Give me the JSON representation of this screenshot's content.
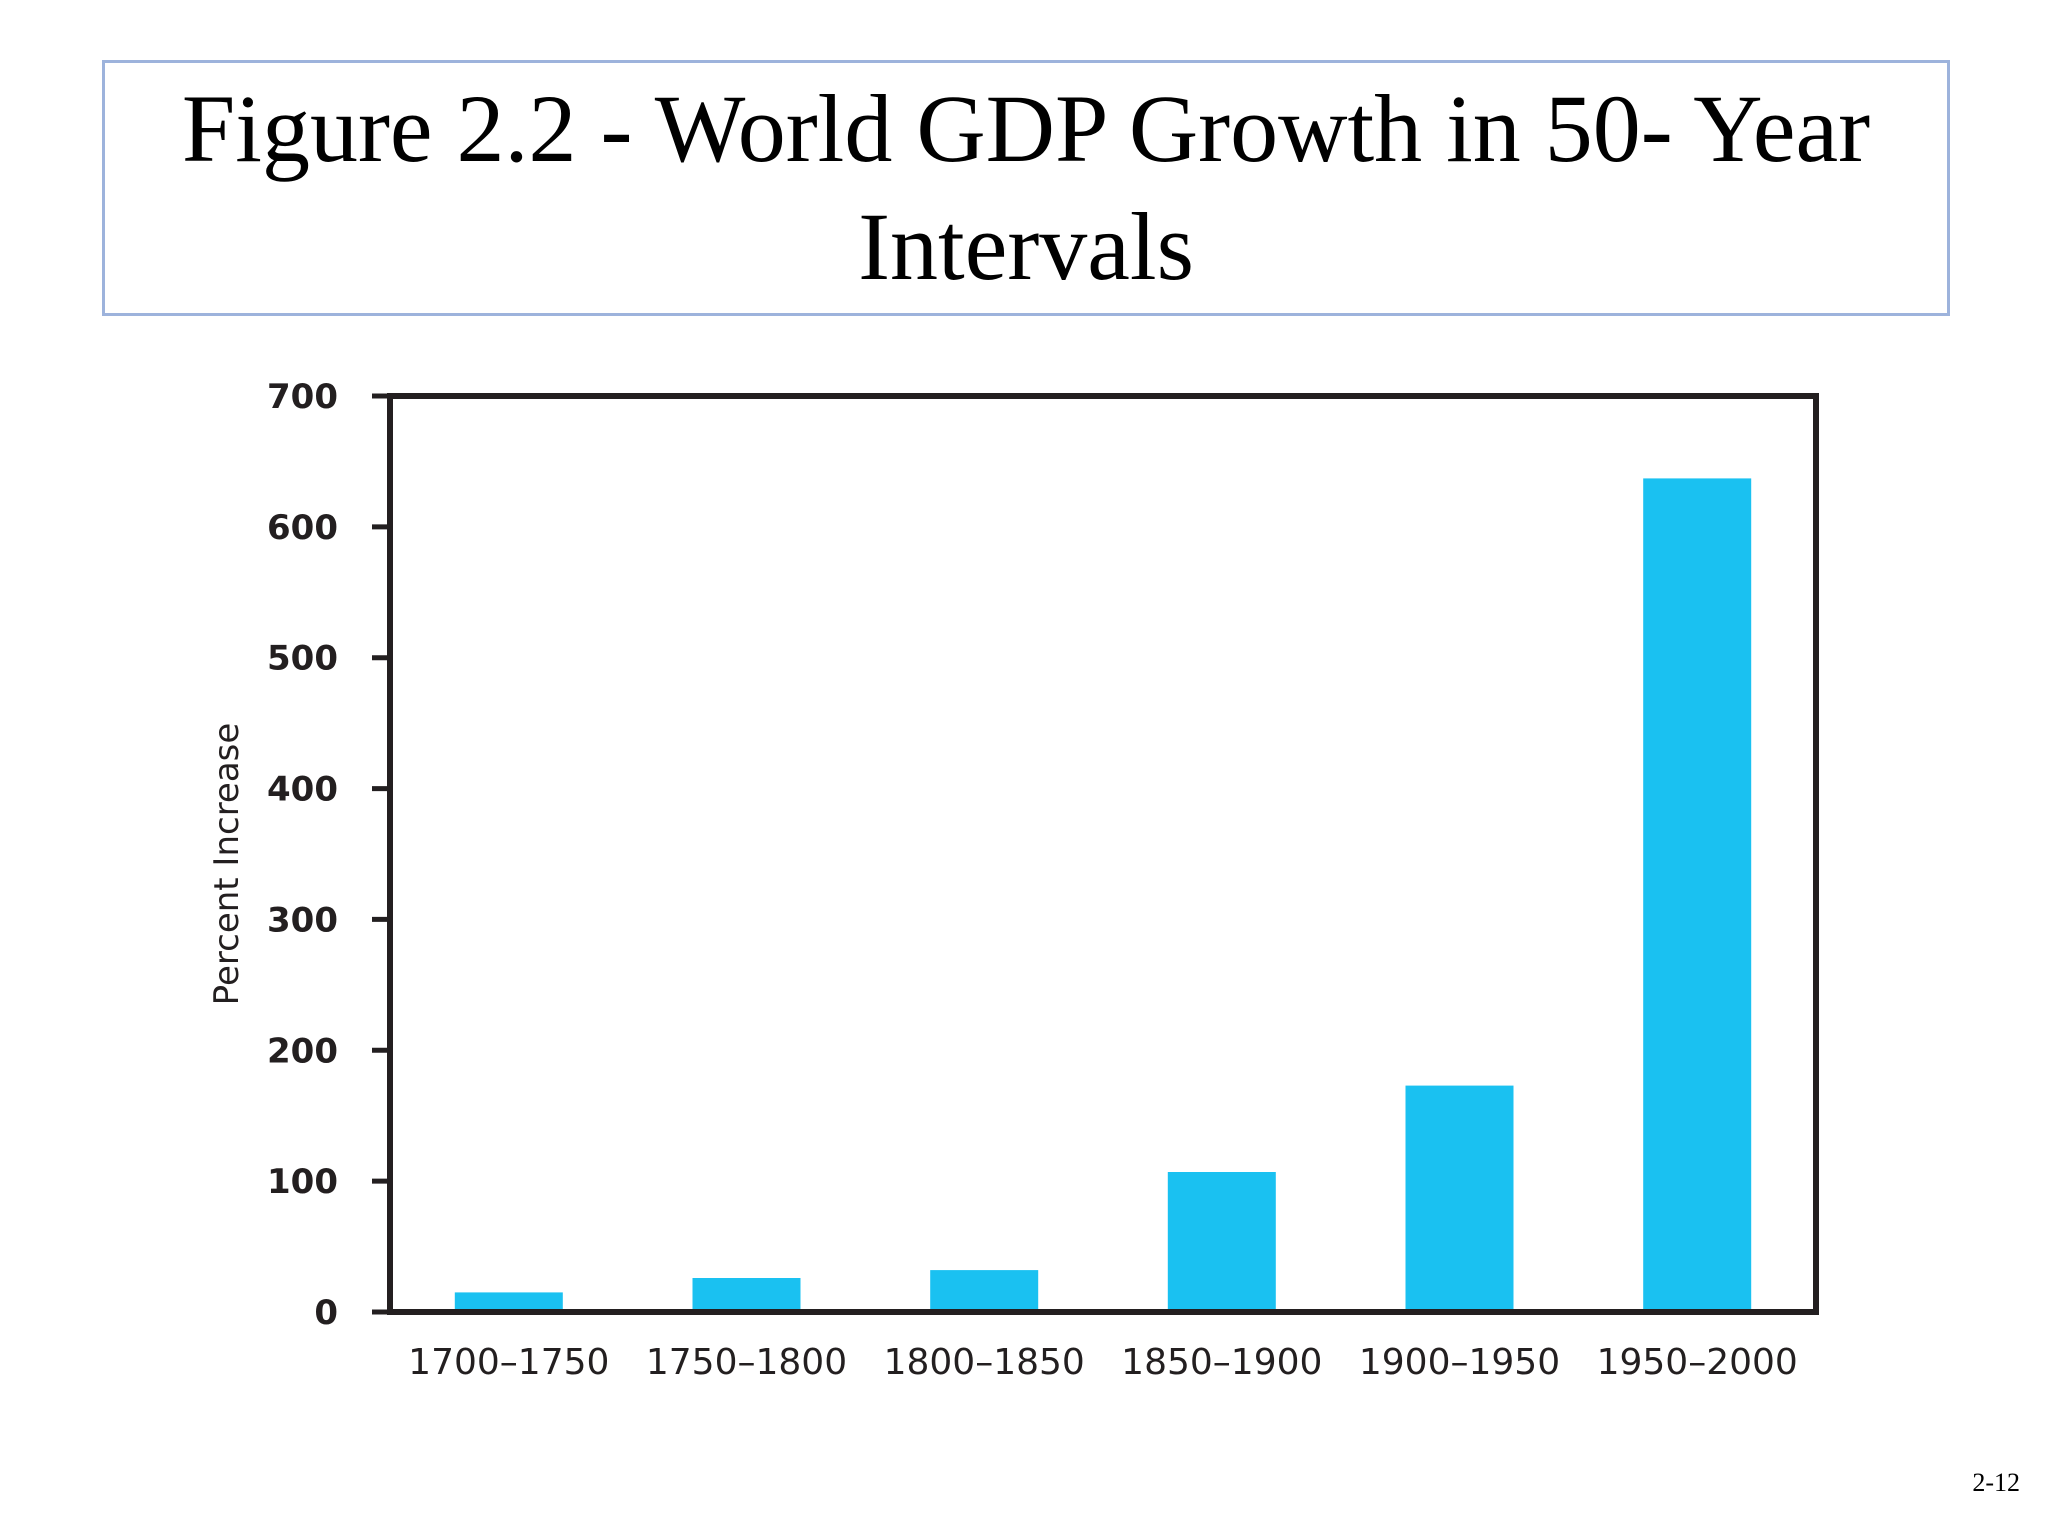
{
  "slide": {
    "title": "Figure 2.2 - World GDP Growth in 50- Year Intervals",
    "number": "2-12"
  },
  "colors": {
    "bar": "#1ac1f1",
    "axis": "#231f20",
    "title_border": "#9db3dc"
  },
  "chart_data": {
    "type": "bar",
    "categories": [
      "1700–1750",
      "1750–1800",
      "1800–1850",
      "1850–1900",
      "1900–1950",
      "1950–2000"
    ],
    "values": [
      15,
      26,
      32,
      107,
      173,
      637
    ],
    "title": "",
    "xlabel": "",
    "ylabel": "Percent Increase",
    "ylim": [
      0,
      700
    ],
    "yticks": [
      0,
      100,
      200,
      300,
      400,
      500,
      600,
      700
    ],
    "grid": false,
    "legend": "none"
  }
}
